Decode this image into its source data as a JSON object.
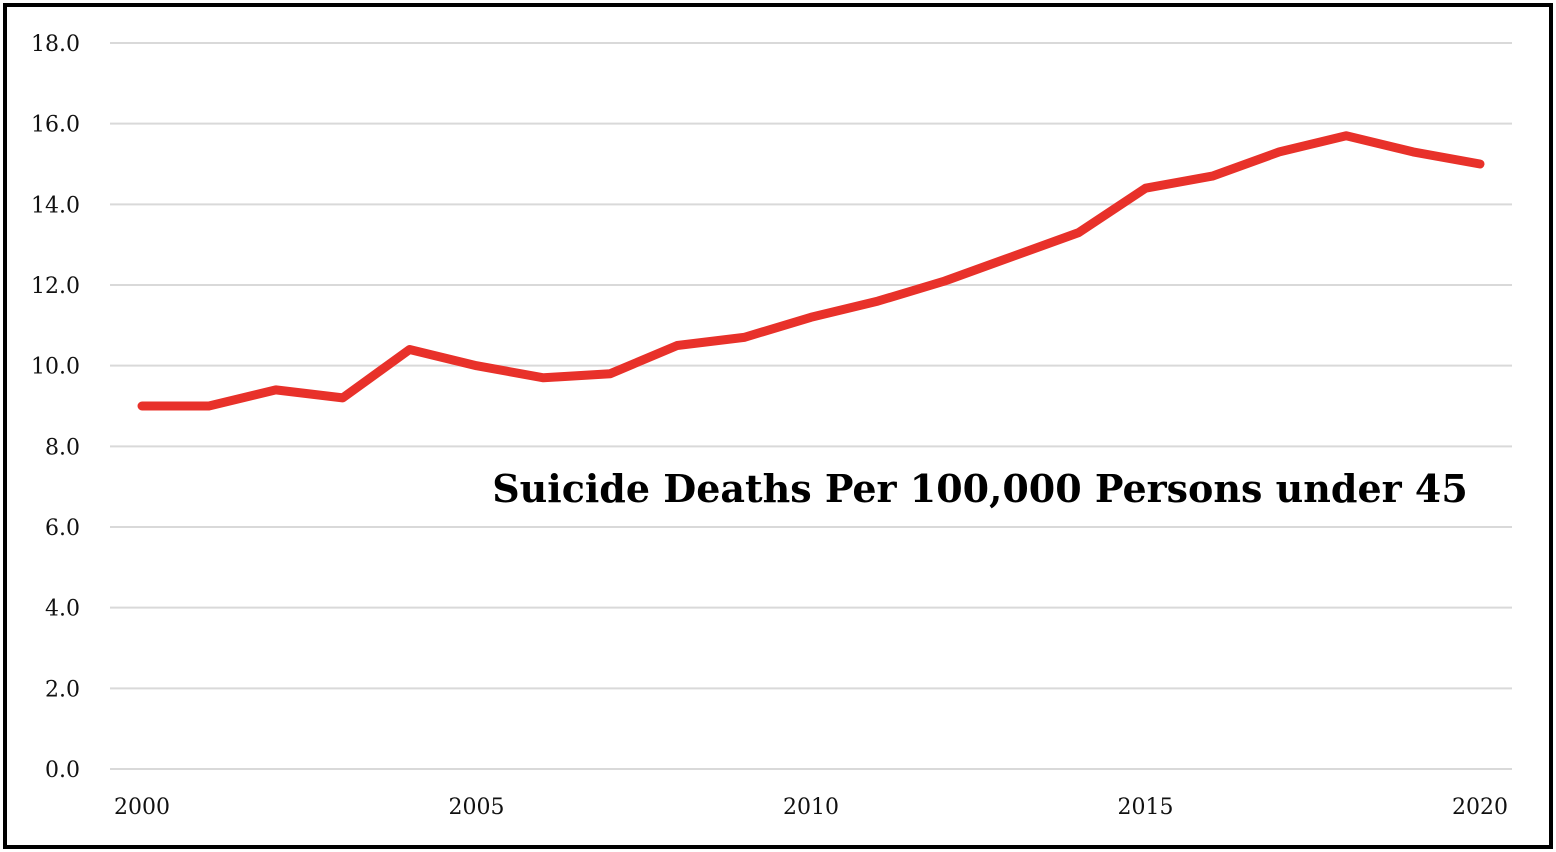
{
  "chart_data": {
    "type": "line",
    "title": "Suicide Deaths Per 100,000 Persons under 45",
    "xlabel": "",
    "ylabel": "",
    "x": [
      2000,
      2001,
      2002,
      2003,
      2004,
      2005,
      2006,
      2007,
      2008,
      2009,
      2010,
      2011,
      2012,
      2013,
      2014,
      2015,
      2016,
      2017,
      2018,
      2019,
      2020
    ],
    "series": [
      {
        "values": [
          9.0,
          9.0,
          9.4,
          9.2,
          10.4,
          10.0,
          9.7,
          9.8,
          10.5,
          10.7,
          11.2,
          11.6,
          12.1,
          12.7,
          13.3,
          14.4,
          14.7,
          15.3,
          15.7,
          15.3,
          15.0
        ],
        "color": "#e8312a"
      }
    ],
    "xlim": [
      2000,
      2020
    ],
    "ylim": [
      0,
      18
    ],
    "x_ticks": [
      "2000",
      "2005",
      "2010",
      "2015",
      "2020"
    ],
    "y_ticks": [
      "0.0",
      "2.0",
      "4.0",
      "6.0",
      "8.0",
      "10.0",
      "12.0",
      "14.0",
      "16.0",
      "18.0"
    ],
    "grid": "horizontal",
    "legend": "none"
  }
}
